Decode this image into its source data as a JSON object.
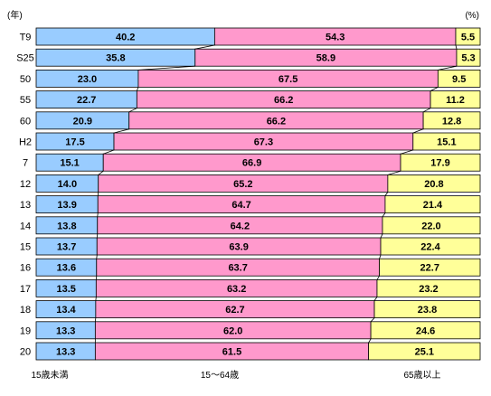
{
  "chart_data": {
    "type": "bar",
    "stacked": "percent",
    "orientation": "horizontal",
    "unit_label": "(%)",
    "category_axis_label": "(年)",
    "categories": [
      "T9",
      "S25",
      "50",
      "55",
      "60",
      "H2",
      "7",
      "12",
      "13",
      "14",
      "15",
      "16",
      "17",
      "18",
      "19",
      "20"
    ],
    "series": [
      {
        "name": "15歳未満",
        "color": "#99ccff",
        "values": [
          40.2,
          35.8,
          23.0,
          22.7,
          20.9,
          17.5,
          15.1,
          14.0,
          13.9,
          13.8,
          13.7,
          13.6,
          13.5,
          13.4,
          13.3,
          13.3
        ]
      },
      {
        "name": "15～64歳",
        "color": "#ff99cc",
        "values": [
          54.3,
          58.9,
          67.5,
          66.2,
          66.2,
          67.3,
          66.9,
          65.2,
          64.7,
          64.2,
          63.9,
          63.7,
          63.2,
          62.7,
          62.0,
          61.5
        ]
      },
      {
        "name": "65歳以上",
        "color": "#ffff99",
        "values": [
          5.5,
          5.3,
          9.5,
          11.2,
          12.8,
          15.1,
          17.9,
          20.8,
          21.4,
          22.0,
          22.4,
          22.7,
          23.2,
          23.8,
          24.6,
          25.1
        ]
      }
    ],
    "xlim": [
      0,
      100
    ],
    "series_lines": true,
    "grid": false,
    "legend": "bottom"
  }
}
